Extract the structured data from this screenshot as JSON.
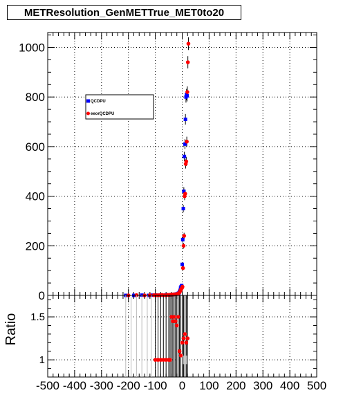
{
  "title": "METResolution_GenMETTrue_MET0to20",
  "chart_data": [
    {
      "panel": "main",
      "type": "scatter",
      "xlim": [
        -500,
        500
      ],
      "ylim": [
        0,
        1060
      ],
      "yticks": [
        0,
        200,
        400,
        600,
        800,
        1000
      ],
      "grid": true,
      "legend_placement": "top-left",
      "series": [
        {
          "name": "QCDPU",
          "color": "#0000ff",
          "marker": "square",
          "x": [
            -210,
            -180,
            -150,
            -125,
            -110,
            -100,
            -90,
            -80,
            -70,
            -60,
            -50,
            -45,
            -40,
            -35,
            -30,
            -25,
            -20,
            -15,
            -12,
            -10,
            -8,
            -6,
            -4,
            -2,
            0,
            2,
            4,
            6,
            8,
            10,
            12,
            14,
            16,
            18
          ],
          "y": [
            0,
            0,
            1,
            0,
            1,
            1,
            1,
            1,
            1,
            2,
            2,
            2,
            3,
            3,
            4,
            5,
            6,
            8,
            10,
            15,
            20,
            30,
            35,
            40,
            125,
            225,
            350,
            420,
            560,
            610,
            710,
            800,
            810,
            805
          ]
        },
        {
          "name": "eeorQCDPU",
          "color": "#ff0000",
          "marker": "circle",
          "x": [
            -200,
            -170,
            -140,
            -120,
            -105,
            -95,
            -85,
            -75,
            -65,
            -55,
            -48,
            -42,
            -38,
            -32,
            -28,
            -22,
            -18,
            -14,
            -10,
            -7,
            -4,
            -1,
            1,
            3,
            5,
            7,
            9,
            11,
            13,
            15,
            17,
            19,
            21,
            23
          ],
          "y": [
            0,
            1,
            0,
            1,
            1,
            1,
            1,
            2,
            1,
            2,
            2,
            3,
            3,
            4,
            4,
            5,
            6,
            8,
            12,
            18,
            25,
            30,
            35,
            110,
            200,
            240,
            400,
            410,
            530,
            540,
            620,
            820,
            940,
            1015
          ]
        }
      ]
    },
    {
      "panel": "ratio",
      "type": "scatter",
      "ylabel": "Ratio",
      "xlim": [
        -500,
        500
      ],
      "ylim": [
        0.8,
        1.75
      ],
      "xticks": [
        -500,
        -400,
        -300,
        -200,
        -100,
        0,
        100,
        200,
        300,
        400,
        500
      ],
      "yticks": [
        1,
        1.5
      ],
      "grid": true,
      "series": [
        {
          "name": "ratio",
          "color": "#ff0000",
          "marker": "circle",
          "x": [
            -100,
            -90,
            -80,
            -70,
            -60,
            -50,
            -45,
            -40,
            -35,
            -30,
            -25,
            -20,
            -15,
            -10,
            -5,
            0,
            5,
            10,
            15,
            20
          ],
          "y": [
            1.0,
            1.0,
            1.0,
            1.0,
            1.0,
            1.0,
            1.0,
            1.5,
            1.45,
            1.5,
            1.45,
            1.4,
            1.5,
            1.1,
            1.05,
            1.2,
            1.25,
            1.3,
            1.2,
            1.25
          ]
        }
      ]
    }
  ]
}
